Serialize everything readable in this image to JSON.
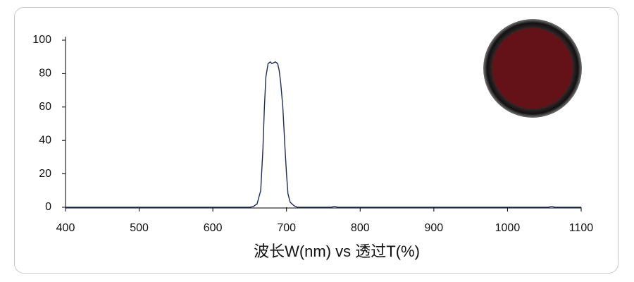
{
  "chart_data": {
    "type": "line",
    "x_label": "波长W(nm) vs 透过T(%)",
    "x": [
      400,
      650,
      655,
      660,
      665,
      668,
      670,
      672,
      675,
      678,
      680,
      685,
      688,
      690,
      692,
      695,
      698,
      700,
      702,
      705,
      710,
      715,
      760,
      765,
      770,
      1055,
      1060,
      1065,
      1100
    ],
    "series": [
      {
        "color": "#1f2a5a",
        "values": [
          0,
          0,
          0.5,
          2,
          10,
          35,
          60,
          78,
          86,
          87,
          86,
          87,
          86,
          82,
          75,
          60,
          35,
          20,
          8,
          3,
          1,
          0,
          0,
          0.5,
          0,
          0,
          0.5,
          0,
          0
        ]
      }
    ],
    "xlim": [
      400,
      1100
    ],
    "xticks": [
      400,
      500,
      600,
      700,
      800,
      900,
      1000,
      1100
    ],
    "ylim": [
      0,
      100
    ],
    "yticks": [
      0,
      20,
      40,
      60,
      80,
      100
    ]
  }
}
